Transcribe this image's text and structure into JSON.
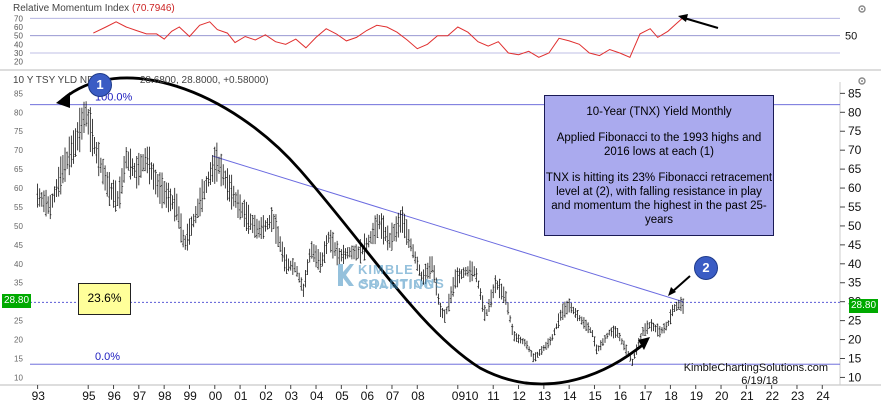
{
  "rsi_panel": {
    "title": "Relative Momentum Index",
    "value": "(70.7946)",
    "axis_left": [
      "70",
      "60",
      "50",
      "40",
      "30",
      "20"
    ],
    "axis_right": [
      "50"
    ]
  },
  "price_panel": {
    "title": "10 Y TSY YLD NDX",
    "ohlc": "28.6800, 28.8000, +0.58000)",
    "last_price_left": "28.80",
    "last_price_right": "28.80"
  },
  "annotation": {
    "line1": "10-Year (TNX) Yield Monthly",
    "line2": "Applied Fibonacci to the 1993 highs and 2016 lows at each (1)",
    "line3": "TNX is hitting its 23% Fibonacci retracement level at (2), with falling resistance in play and momentum the highest in the past 25-years"
  },
  "fib_levels": {
    "top": "100.0%",
    "mid": "23.6%",
    "bottom": "0.0%"
  },
  "markers": {
    "one": "1",
    "two": "2"
  },
  "watermark": {
    "line1": "KIMBLE CHARTING",
    "line2": "SOLUTIONS"
  },
  "credit": {
    "site": "KimbleChartingSolutions.com",
    "date": "6/19/18"
  },
  "colors": {
    "price": "#111111",
    "rsi": "#e03030",
    "fib": "#5b5bd6",
    "resistance": "#6b6be0",
    "annotation_bg": "#aaaaee",
    "last_price": "#00aa00"
  },
  "chart_data": {
    "type": "ohlc",
    "title": "10-Year (TNX) Yield Monthly",
    "y_axis_ticks": [
      10,
      15,
      20,
      25,
      30,
      35,
      40,
      45,
      50,
      55,
      60,
      65,
      70,
      75,
      80,
      85
    ],
    "x_axis_labels": [
      "93",
      "95",
      "96",
      "97",
      "98",
      "99",
      "00",
      "01",
      "02",
      "03",
      "04",
      "05",
      "06",
      "07",
      "08",
      "0910",
      "11",
      "12",
      "13",
      "14",
      "15",
      "16",
      "17",
      "18",
      "19",
      "20",
      "21",
      "22",
      "23",
      "24"
    ],
    "x_axis_years": [
      1993,
      1995,
      1996,
      1997,
      1998,
      1999,
      2000,
      2001,
      2002,
      2003,
      2004,
      2005,
      2006,
      2007,
      2008,
      2009.6,
      2011,
      2012,
      2013,
      2014,
      2015,
      2016,
      2017,
      2018,
      2019,
      2020,
      2021,
      2022,
      2023,
      2024
    ],
    "ylim": [
      8,
      88
    ],
    "price_series": {
      "name": "10 Y TSY YLD NDX",
      "points": [
        [
          1993.0,
          58
        ],
        [
          1993.5,
          55
        ],
        [
          1994.0,
          65
        ],
        [
          1994.5,
          72
        ],
        [
          1994.9,
          80
        ],
        [
          1995.3,
          70
        ],
        [
          1995.8,
          60
        ],
        [
          1996.2,
          57
        ],
        [
          1996.5,
          68
        ],
        [
          1996.9,
          64
        ],
        [
          1997.3,
          68
        ],
        [
          1997.7,
          61
        ],
        [
          1998.1,
          58
        ],
        [
          1998.5,
          55
        ],
        [
          1998.8,
          45
        ],
        [
          1999.2,
          52
        ],
        [
          1999.5,
          58
        ],
        [
          1999.9,
          65
        ],
        [
          2000.1,
          67
        ],
        [
          2000.5,
          61
        ],
        [
          2000.9,
          56
        ],
        [
          2001.3,
          52
        ],
        [
          2001.7,
          49
        ],
        [
          2002.0,
          50
        ],
        [
          2002.3,
          52
        ],
        [
          2002.8,
          40
        ],
        [
          2003.2,
          39
        ],
        [
          2003.5,
          33
        ],
        [
          2003.8,
          44
        ],
        [
          2004.2,
          40
        ],
        [
          2004.5,
          47
        ],
        [
          2004.9,
          42
        ],
        [
          2005.3,
          43
        ],
        [
          2005.7,
          43
        ],
        [
          2006.0,
          45
        ],
        [
          2006.5,
          51
        ],
        [
          2006.9,
          46
        ],
        [
          2007.4,
          52
        ],
        [
          2007.8,
          44
        ],
        [
          2008.2,
          36
        ],
        [
          2008.6,
          40
        ],
        [
          2008.9,
          28
        ],
        [
          2009.1,
          26
        ],
        [
          2009.5,
          36
        ],
        [
          2009.9,
          38
        ],
        [
          2010.3,
          38
        ],
        [
          2010.7,
          26
        ],
        [
          2011.1,
          35
        ],
        [
          2011.5,
          31
        ],
        [
          2011.8,
          21
        ],
        [
          2012.3,
          19
        ],
        [
          2012.6,
          15
        ],
        [
          2012.9,
          17
        ],
        [
          2013.3,
          20
        ],
        [
          2013.7,
          27
        ],
        [
          2014.0,
          29
        ],
        [
          2014.5,
          25
        ],
        [
          2014.9,
          22
        ],
        [
          2015.1,
          17
        ],
        [
          2015.6,
          22
        ],
        [
          2015.9,
          22
        ],
        [
          2016.2,
          18
        ],
        [
          2016.5,
          14
        ],
        [
          2016.9,
          22
        ],
        [
          2017.2,
          24
        ],
        [
          2017.6,
          22
        ],
        [
          2017.9,
          24
        ],
        [
          2018.1,
          28
        ],
        [
          2018.4,
          29.5
        ],
        [
          2018.5,
          28.8
        ]
      ]
    },
    "fibonacci": [
      {
        "label": "100.0%",
        "y": 82
      },
      {
        "label": "23.6%",
        "y": 29.8
      },
      {
        "label": "0.0%",
        "y": 13.5
      }
    ],
    "resistance_line": {
      "x": [
        1999.9,
        2018.5
      ],
      "y": [
        68.5,
        30
      ]
    },
    "last_price": 28.8,
    "rsi_series": {
      "name": "Relative Momentum Index",
      "ylim": [
        15,
        75
      ],
      "points": [
        [
          1995.2,
          53
        ],
        [
          1995.7,
          60
        ],
        [
          1996.1,
          66
        ],
        [
          1996.5,
          60
        ],
        [
          1996.9,
          56
        ],
        [
          1997.3,
          52
        ],
        [
          1997.7,
          52
        ],
        [
          1998.0,
          46
        ],
        [
          1998.3,
          55
        ],
        [
          1998.6,
          60
        ],
        [
          1999.0,
          49
        ],
        [
          1999.4,
          62
        ],
        [
          1999.8,
          66
        ],
        [
          2000.1,
          57
        ],
        [
          2000.5,
          53
        ],
        [
          2000.8,
          42
        ],
        [
          2001.2,
          49
        ],
        [
          2001.6,
          45
        ],
        [
          2002.0,
          51
        ],
        [
          2002.4,
          43
        ],
        [
          2002.8,
          40
        ],
        [
          2003.2,
          46
        ],
        [
          2003.6,
          36
        ],
        [
          2004.0,
          48
        ],
        [
          2004.4,
          58
        ],
        [
          2004.8,
          52
        ],
        [
          2005.2,
          44
        ],
        [
          2005.6,
          48
        ],
        [
          2006.0,
          56
        ],
        [
          2006.4,
          62
        ],
        [
          2006.8,
          60
        ],
        [
          2007.2,
          54
        ],
        [
          2007.6,
          45
        ],
        [
          2008.0,
          35
        ],
        [
          2008.4,
          40
        ],
        [
          2008.8,
          50
        ],
        [
          2009.2,
          50
        ],
        [
          2009.6,
          60
        ],
        [
          2010.0,
          54
        ],
        [
          2010.4,
          43
        ],
        [
          2010.8,
          38
        ],
        [
          2011.2,
          43
        ],
        [
          2011.6,
          30
        ],
        [
          2012.0,
          28
        ],
        [
          2012.4,
          32
        ],
        [
          2012.8,
          25
        ],
        [
          2013.2,
          30
        ],
        [
          2013.6,
          47
        ],
        [
          2014.0,
          44
        ],
        [
          2014.4,
          40
        ],
        [
          2014.8,
          30
        ],
        [
          2015.2,
          27
        ],
        [
          2015.6,
          34
        ],
        [
          2016.0,
          30
        ],
        [
          2016.4,
          25
        ],
        [
          2016.8,
          52
        ],
        [
          2017.2,
          58
        ],
        [
          2017.5,
          48
        ],
        [
          2017.9,
          55
        ],
        [
          2018.2,
          63
        ],
        [
          2018.5,
          70.8
        ]
      ]
    }
  }
}
